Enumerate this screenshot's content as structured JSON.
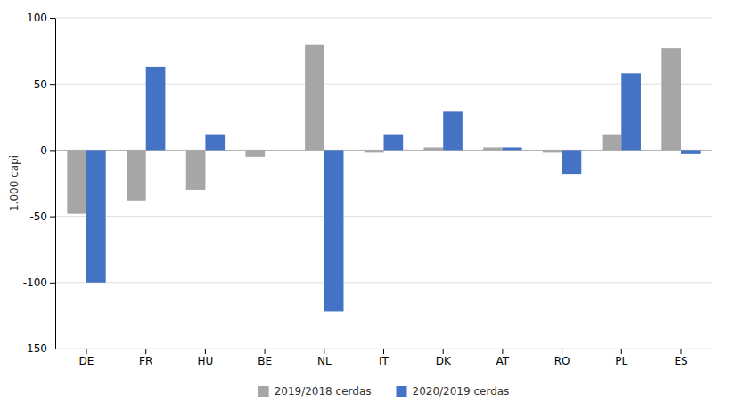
{
  "chart_data": {
    "type": "bar",
    "categories": [
      "DE",
      "FR",
      "HU",
      "BE",
      "NL",
      "IT",
      "DK",
      "AT",
      "RO",
      "PL",
      "ES"
    ],
    "series": [
      {
        "name": "2019/2018 cerdas",
        "color": "#a6a6a6",
        "values": [
          -48,
          -38,
          -30,
          -5,
          80,
          -2,
          2,
          2,
          -2,
          12,
          77
        ]
      },
      {
        "name": "2020/2019 cerdas",
        "color": "#4472c4",
        "values": [
          -100,
          63,
          12,
          0,
          -122,
          12,
          29,
          2,
          -18,
          58,
          -3
        ]
      }
    ],
    "ylabel": "1.000 capi",
    "ylim": [
      -150,
      100
    ],
    "yticks": [
      -150,
      -100,
      -50,
      0,
      50,
      100
    ],
    "grid": true,
    "legend": "bottom"
  }
}
